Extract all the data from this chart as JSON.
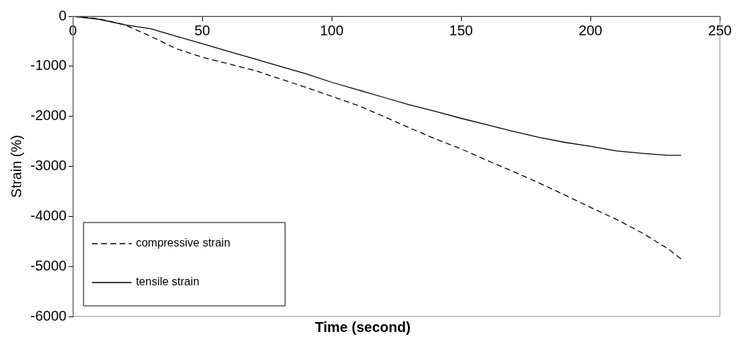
{
  "chart_data": {
    "type": "line",
    "xlabel": "Time (second)",
    "ylabel": "Strain (%)",
    "xlim": [
      0,
      250
    ],
    "xticks": [
      0,
      50,
      100,
      150,
      200,
      250
    ],
    "ylim": [
      -6000,
      0
    ],
    "yticks": [
      -6000,
      -5000,
      -4000,
      -3000,
      -2000,
      -1000,
      0
    ],
    "grid": false,
    "legend": "bottom left",
    "marker": "none",
    "series": [
      {
        "name": "compressive strain",
        "color": "#000000",
        "line_style": "dashed",
        "x": [
          0,
          10,
          20,
          30,
          40,
          50,
          60,
          70,
          80,
          90,
          100,
          110,
          120,
          130,
          140,
          150,
          160,
          170,
          180,
          190,
          200,
          210,
          220,
          230,
          235
        ],
        "values": [
          0,
          -50,
          -170,
          -400,
          -650,
          -820,
          -950,
          -1080,
          -1250,
          -1420,
          -1600,
          -1780,
          -2000,
          -2230,
          -2450,
          -2650,
          -2880,
          -3100,
          -3330,
          -3570,
          -3820,
          -4060,
          -4330,
          -4650,
          -4850
        ]
      },
      {
        "name": "tensile strain",
        "color": "#000000",
        "line_style": "solid",
        "x": [
          0,
          10,
          20,
          30,
          40,
          50,
          60,
          70,
          80,
          90,
          100,
          110,
          120,
          130,
          140,
          150,
          160,
          170,
          180,
          190,
          200,
          210,
          220,
          230,
          235
        ],
        "values": [
          0,
          -60,
          -170,
          -250,
          -400,
          -550,
          -700,
          -850,
          -1000,
          -1150,
          -1320,
          -1470,
          -1620,
          -1770,
          -1900,
          -2040,
          -2170,
          -2300,
          -2420,
          -2520,
          -2600,
          -2690,
          -2740,
          -2780,
          -2780
        ]
      }
    ]
  }
}
